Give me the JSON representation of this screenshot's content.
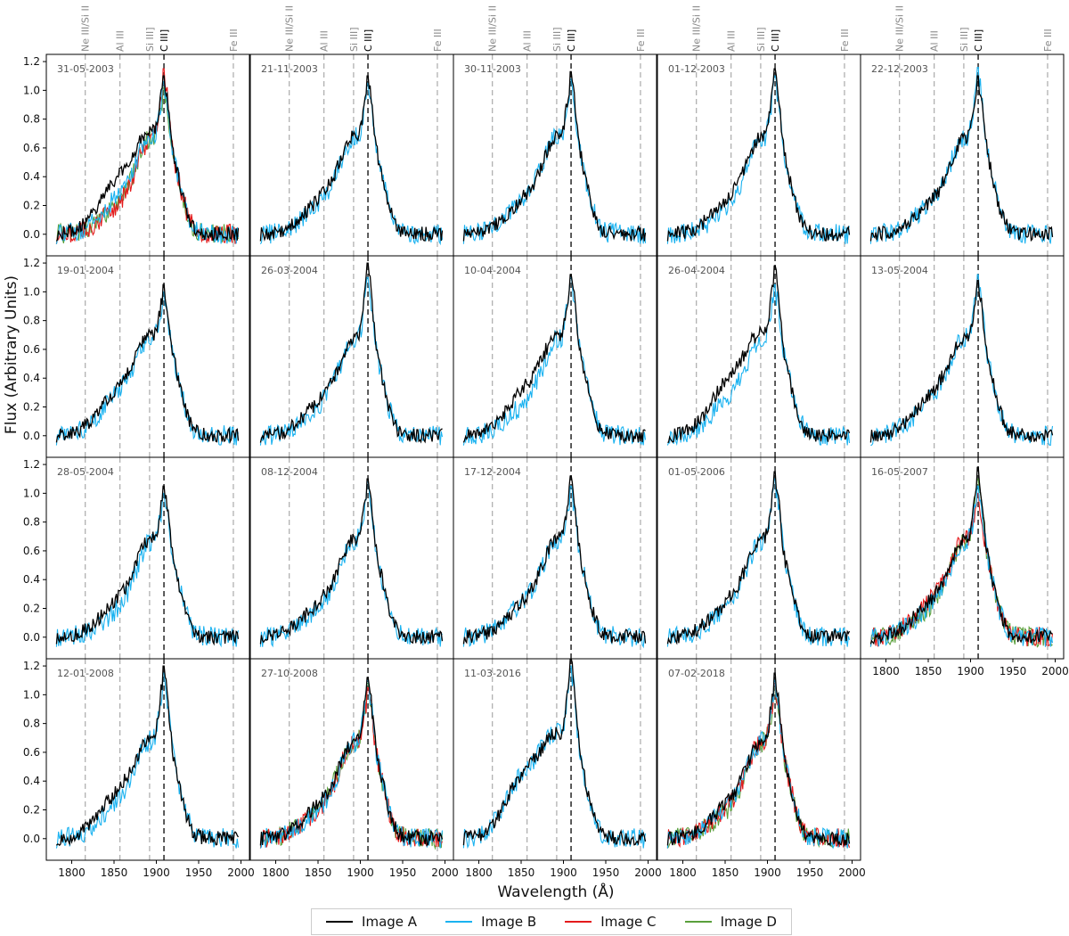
{
  "figure": {
    "xlabel": "Wavelength (Å)",
    "ylabel": "Flux (Arbitrary Units)"
  },
  "legend": {
    "items": [
      {
        "label": "Image A",
        "color": "#000000"
      },
      {
        "label": "Image B",
        "color": "#1ab2f0"
      },
      {
        "label": "Image C",
        "color": "#e41a1c"
      },
      {
        "label": "Image D",
        "color": "#5aa03c"
      }
    ]
  },
  "chart_data": {
    "type": "line",
    "layout": "small-multiples grid, 4 rows x 5 columns, shared axes",
    "xlim": [
      1770,
      2010
    ],
    "ylim": [
      -0.15,
      1.25
    ],
    "xticks": [
      1800,
      1850,
      1900,
      1950,
      2000
    ],
    "yticks": [
      0.0,
      0.2,
      0.4,
      0.6,
      0.8,
      1.0,
      1.2
    ],
    "xtick_labels": [
      "1800",
      "1850",
      "1900",
      "1950",
      "2000"
    ],
    "ytick_labels": [
      "0.0",
      "0.2",
      "0.4",
      "0.6",
      "0.8",
      "1.0",
      "1.2"
    ],
    "grid": false,
    "legend_position": "bottom-center",
    "reference_lines": [
      {
        "label": "Ne III/Si II",
        "x": 1816,
        "style": "dashed",
        "color": "#aaaaaa"
      },
      {
        "label": "Al III",
        "x": 1857,
        "style": "dashed",
        "color": "#aaaaaa"
      },
      {
        "label": "Si III]",
        "x": 1892,
        "style": "dashed",
        "color": "#aaaaaa"
      },
      {
        "label": "C III]",
        "x": 1909,
        "style": "dashed",
        "color": "#333333"
      },
      {
        "label": "Fe III",
        "x": 1991,
        "style": "dashed",
        "color": "#aaaaaa"
      }
    ],
    "line_label_color": "#888888",
    "panels": [
      {
        "date": "31-05-2003",
        "images": [
          "A",
          "B",
          "C",
          "D"
        ],
        "peaks": {
          "A": 1.1,
          "B": 1.06,
          "C": 1.15,
          "D": 1.02
        },
        "wings": {
          "A": 0.5,
          "B": 0.3,
          "C": 0.2,
          "D": 0.22
        }
      },
      {
        "date": "21-11-2003",
        "images": [
          "A",
          "B"
        ],
        "peaks": {
          "A": 1.1,
          "B": 1.05
        },
        "wings": {
          "A": 0.3,
          "B": 0.25
        }
      },
      {
        "date": "30-11-2003",
        "images": [
          "A",
          "B"
        ],
        "peaks": {
          "A": 1.13,
          "B": 1.08
        },
        "wings": {
          "A": 0.3,
          "B": 0.3
        }
      },
      {
        "date": "01-12-2003",
        "images": [
          "A",
          "B"
        ],
        "peaks": {
          "A": 1.15,
          "B": 1.1
        },
        "wings": {
          "A": 0.28,
          "B": 0.2
        }
      },
      {
        "date": "22-12-2003",
        "images": [
          "A",
          "B"
        ],
        "peaks": {
          "A": 1.1,
          "B": 1.16
        },
        "wings": {
          "A": 0.25,
          "B": 0.25
        }
      },
      {
        "date": "19-01-2004",
        "images": [
          "A",
          "B"
        ],
        "peaks": {
          "A": 1.05,
          "B": 1.0
        },
        "wings": {
          "A": 0.4,
          "B": 0.35
        }
      },
      {
        "date": "26-03-2004",
        "images": [
          "A",
          "B"
        ],
        "peaks": {
          "A": 1.2,
          "B": 1.1
        },
        "wings": {
          "A": 0.3,
          "B": 0.25
        }
      },
      {
        "date": "10-04-2004",
        "images": [
          "A",
          "B"
        ],
        "peaks": {
          "A": 1.12,
          "B": 1.1
        },
        "wings": {
          "A": 0.4,
          "B": 0.25
        }
      },
      {
        "date": "26-04-2004",
        "images": [
          "A",
          "B"
        ],
        "peaks": {
          "A": 1.18,
          "B": 1.05
        },
        "wings": {
          "A": 0.5,
          "B": 0.3
        }
      },
      {
        "date": "13-05-2004",
        "images": [
          "A",
          "B"
        ],
        "peaks": {
          "A": 1.08,
          "B": 1.12
        },
        "wings": {
          "A": 0.35,
          "B": 0.3
        }
      },
      {
        "date": "28-05-2004",
        "images": [
          "A",
          "B"
        ],
        "peaks": {
          "A": 1.05,
          "B": 1.0
        },
        "wings": {
          "A": 0.3,
          "B": 0.2
        }
      },
      {
        "date": "08-12-2004",
        "images": [
          "A",
          "B"
        ],
        "peaks": {
          "A": 1.1,
          "B": 1.08
        },
        "wings": {
          "A": 0.3,
          "B": 0.25
        }
      },
      {
        "date": "17-12-2004",
        "images": [
          "A",
          "B"
        ],
        "peaks": {
          "A": 1.12,
          "B": 1.05
        },
        "wings": {
          "A": 0.3,
          "B": 0.3
        }
      },
      {
        "date": "01-05-2006",
        "images": [
          "A",
          "B"
        ],
        "peaks": {
          "A": 1.15,
          "B": 1.1
        },
        "wings": {
          "A": 0.3,
          "B": 0.25
        }
      },
      {
        "date": "16-05-2007",
        "images": [
          "A",
          "B",
          "C",
          "D"
        ],
        "peaks": {
          "A": 1.18,
          "B": 1.05,
          "C": 1.0,
          "D": 1.1
        },
        "wings": {
          "A": 0.3,
          "B": 0.25,
          "C": 0.3,
          "D": 0.25
        }
      },
      {
        "date": "12-01-2008",
        "images": [
          "A",
          "B"
        ],
        "peaks": {
          "A": 1.2,
          "B": 1.15
        },
        "wings": {
          "A": 0.4,
          "B": 0.3
        }
      },
      {
        "date": "27-10-2008",
        "images": [
          "A",
          "B",
          "C",
          "D"
        ],
        "peaks": {
          "A": 1.12,
          "B": 1.1,
          "C": 1.05,
          "D": 1.08
        },
        "wings": {
          "A": 0.3,
          "B": 0.25,
          "C": 0.25,
          "D": 0.28
        }
      },
      {
        "date": "11-03-2016",
        "images": [
          "A",
          "B"
        ],
        "peaks": {
          "A": 1.25,
          "B": 1.2
        },
        "wings": {
          "A": 0.6,
          "B": 0.6
        }
      },
      {
        "date": "07-02-2018",
        "images": [
          "A",
          "B",
          "C",
          "D"
        ],
        "peaks": {
          "A": 1.15,
          "B": 1.1,
          "C": 1.08,
          "D": 1.05
        },
        "wings": {
          "A": 0.3,
          "B": 0.25,
          "C": 0.25,
          "D": 0.22
        }
      }
    ]
  }
}
